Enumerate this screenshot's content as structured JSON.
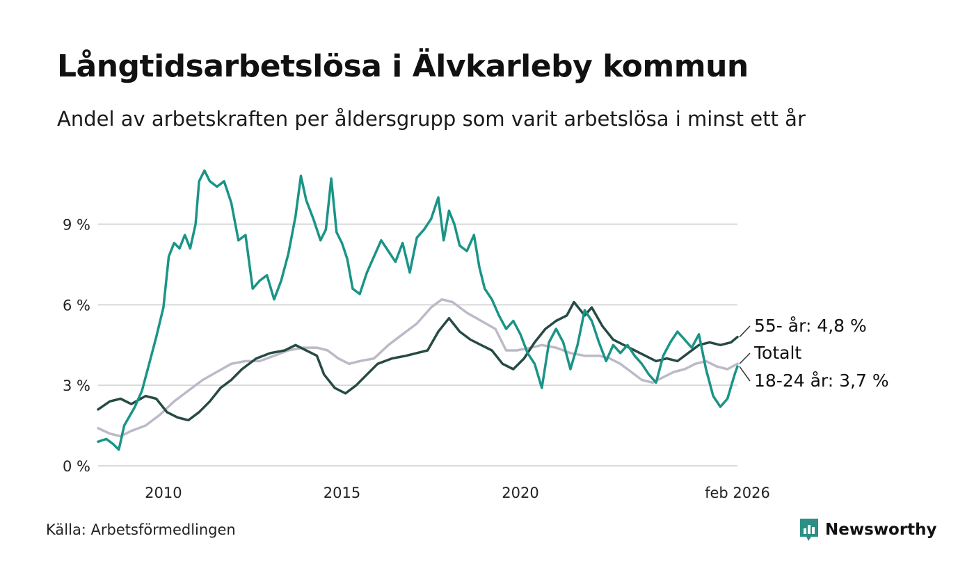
{
  "title": "Långtidsarbetslösa i Älvkarleby kommun",
  "subtitle": "Andel av arbetskraften per åldersgrupp som varit arbetslösa i minst ett år",
  "source": "Källa: Arbetsförmedlingen",
  "brand": "Newsworthy",
  "colors": {
    "young": "#1a9486",
    "old": "#264a44",
    "total": "#bcbac7",
    "grid": "#d9d9d9",
    "brand": "#2b8f84"
  },
  "chart_data": {
    "type": "line",
    "title": "Långtidsarbetslösa i Älvkarleby kommun",
    "xlabel": "",
    "ylabel": "",
    "ylim": [
      0,
      11.5
    ],
    "xlim": [
      2008.17,
      2026.08
    ],
    "yticks": [
      0,
      3,
      6,
      9
    ],
    "yticklabels": [
      "0 %",
      "3 %",
      "6 %",
      "9 %"
    ],
    "xticks": [
      2010,
      2015,
      2020,
      2026.08
    ],
    "xticklabels": [
      "2010",
      "2015",
      "2020",
      "feb 2026"
    ],
    "grid": true,
    "series": [
      {
        "key": "total",
        "name": "Totalt",
        "end_label": "Totalt",
        "points": [
          [
            2008.17,
            1.4
          ],
          [
            2008.5,
            1.2
          ],
          [
            2008.8,
            1.1
          ],
          [
            2009.1,
            1.3
          ],
          [
            2009.5,
            1.5
          ],
          [
            2009.9,
            1.9
          ],
          [
            2010.3,
            2.4
          ],
          [
            2010.7,
            2.8
          ],
          [
            2011.1,
            3.2
          ],
          [
            2011.5,
            3.5
          ],
          [
            2011.9,
            3.8
          ],
          [
            2012.3,
            3.9
          ],
          [
            2012.7,
            3.9
          ],
          [
            2013.1,
            4.1
          ],
          [
            2013.5,
            4.3
          ],
          [
            2013.9,
            4.4
          ],
          [
            2014.3,
            4.4
          ],
          [
            2014.6,
            4.3
          ],
          [
            2014.9,
            4.0
          ],
          [
            2015.2,
            3.8
          ],
          [
            2015.5,
            3.9
          ],
          [
            2015.9,
            4.0
          ],
          [
            2016.3,
            4.5
          ],
          [
            2016.7,
            4.9
          ],
          [
            2017.1,
            5.3
          ],
          [
            2017.5,
            5.9
          ],
          [
            2017.8,
            6.2
          ],
          [
            2018.1,
            6.1
          ],
          [
            2018.5,
            5.7
          ],
          [
            2018.9,
            5.4
          ],
          [
            2019.3,
            5.1
          ],
          [
            2019.6,
            4.3
          ],
          [
            2019.9,
            4.3
          ],
          [
            2020.3,
            4.4
          ],
          [
            2020.6,
            4.5
          ],
          [
            2021.0,
            4.4
          ],
          [
            2021.4,
            4.2
          ],
          [
            2021.8,
            4.1
          ],
          [
            2022.2,
            4.1
          ],
          [
            2022.5,
            4.0
          ],
          [
            2022.8,
            3.8
          ],
          [
            2023.1,
            3.5
          ],
          [
            2023.4,
            3.2
          ],
          [
            2023.7,
            3.1
          ],
          [
            2024.0,
            3.3
          ],
          [
            2024.3,
            3.5
          ],
          [
            2024.6,
            3.6
          ],
          [
            2024.9,
            3.8
          ],
          [
            2025.2,
            3.9
          ],
          [
            2025.5,
            3.7
          ],
          [
            2025.8,
            3.6
          ],
          [
            2026.08,
            3.8
          ]
        ],
        "last_value": 3.8
      },
      {
        "key": "old",
        "name": "55- år",
        "end_label": "55- år: 4,8 %",
        "points": [
          [
            2008.17,
            2.1
          ],
          [
            2008.5,
            2.4
          ],
          [
            2008.8,
            2.5
          ],
          [
            2009.1,
            2.3
          ],
          [
            2009.5,
            2.6
          ],
          [
            2009.8,
            2.5
          ],
          [
            2010.1,
            2.0
          ],
          [
            2010.4,
            1.8
          ],
          [
            2010.7,
            1.7
          ],
          [
            2011.0,
            2.0
          ],
          [
            2011.3,
            2.4
          ],
          [
            2011.6,
            2.9
          ],
          [
            2011.9,
            3.2
          ],
          [
            2012.2,
            3.6
          ],
          [
            2012.6,
            4.0
          ],
          [
            2013.0,
            4.2
          ],
          [
            2013.4,
            4.3
          ],
          [
            2013.7,
            4.5
          ],
          [
            2014.0,
            4.3
          ],
          [
            2014.3,
            4.1
          ],
          [
            2014.5,
            3.4
          ],
          [
            2014.8,
            2.9
          ],
          [
            2015.1,
            2.7
          ],
          [
            2015.4,
            3.0
          ],
          [
            2015.7,
            3.4
          ],
          [
            2016.0,
            3.8
          ],
          [
            2016.4,
            4.0
          ],
          [
            2016.8,
            4.1
          ],
          [
            2017.1,
            4.2
          ],
          [
            2017.4,
            4.3
          ],
          [
            2017.7,
            5.0
          ],
          [
            2018.0,
            5.5
          ],
          [
            2018.3,
            5.0
          ],
          [
            2018.6,
            4.7
          ],
          [
            2018.9,
            4.5
          ],
          [
            2019.2,
            4.3
          ],
          [
            2019.5,
            3.8
          ],
          [
            2019.8,
            3.6
          ],
          [
            2020.1,
            4.0
          ],
          [
            2020.4,
            4.6
          ],
          [
            2020.7,
            5.1
          ],
          [
            2021.0,
            5.4
          ],
          [
            2021.3,
            5.6
          ],
          [
            2021.5,
            6.1
          ],
          [
            2021.8,
            5.6
          ],
          [
            2022.0,
            5.9
          ],
          [
            2022.3,
            5.2
          ],
          [
            2022.6,
            4.7
          ],
          [
            2022.9,
            4.5
          ],
          [
            2023.2,
            4.3
          ],
          [
            2023.5,
            4.1
          ],
          [
            2023.8,
            3.9
          ],
          [
            2024.1,
            4.0
          ],
          [
            2024.4,
            3.9
          ],
          [
            2024.7,
            4.2
          ],
          [
            2025.0,
            4.5
          ],
          [
            2025.3,
            4.6
          ],
          [
            2025.6,
            4.5
          ],
          [
            2025.9,
            4.6
          ],
          [
            2026.08,
            4.8
          ]
        ],
        "last_value": 4.8
      },
      {
        "key": "young",
        "name": "18-24 år",
        "end_label": "18-24 år: 3,7 %",
        "points": [
          [
            2008.17,
            0.9
          ],
          [
            2008.4,
            1.0
          ],
          [
            2008.6,
            0.8
          ],
          [
            2008.75,
            0.6
          ],
          [
            2008.9,
            1.5
          ],
          [
            2009.2,
            2.2
          ],
          [
            2009.4,
            2.8
          ],
          [
            2009.6,
            3.8
          ],
          [
            2009.8,
            4.8
          ],
          [
            2010.0,
            5.9
          ],
          [
            2010.15,
            7.8
          ],
          [
            2010.3,
            8.3
          ],
          [
            2010.45,
            8.1
          ],
          [
            2010.6,
            8.6
          ],
          [
            2010.75,
            8.1
          ],
          [
            2010.9,
            9.0
          ],
          [
            2011.0,
            10.6
          ],
          [
            2011.15,
            11.0
          ],
          [
            2011.3,
            10.6
          ],
          [
            2011.5,
            10.4
          ],
          [
            2011.7,
            10.6
          ],
          [
            2011.9,
            9.8
          ],
          [
            2012.1,
            8.4
          ],
          [
            2012.3,
            8.6
          ],
          [
            2012.5,
            6.6
          ],
          [
            2012.7,
            6.9
          ],
          [
            2012.9,
            7.1
          ],
          [
            2013.1,
            6.2
          ],
          [
            2013.3,
            6.9
          ],
          [
            2013.5,
            7.9
          ],
          [
            2013.7,
            9.3
          ],
          [
            2013.85,
            10.8
          ],
          [
            2014.0,
            9.9
          ],
          [
            2014.2,
            9.2
          ],
          [
            2014.4,
            8.4
          ],
          [
            2014.55,
            8.8
          ],
          [
            2014.7,
            10.7
          ],
          [
            2014.85,
            8.7
          ],
          [
            2015.0,
            8.3
          ],
          [
            2015.15,
            7.7
          ],
          [
            2015.3,
            6.6
          ],
          [
            2015.5,
            6.4
          ],
          [
            2015.7,
            7.2
          ],
          [
            2015.9,
            7.8
          ],
          [
            2016.1,
            8.4
          ],
          [
            2016.3,
            8.0
          ],
          [
            2016.5,
            7.6
          ],
          [
            2016.7,
            8.3
          ],
          [
            2016.9,
            7.2
          ],
          [
            2017.1,
            8.5
          ],
          [
            2017.3,
            8.8
          ],
          [
            2017.5,
            9.2
          ],
          [
            2017.7,
            10.0
          ],
          [
            2017.85,
            8.4
          ],
          [
            2018.0,
            9.5
          ],
          [
            2018.15,
            9.0
          ],
          [
            2018.3,
            8.2
          ],
          [
            2018.5,
            8.0
          ],
          [
            2018.7,
            8.6
          ],
          [
            2018.85,
            7.4
          ],
          [
            2019.0,
            6.6
          ],
          [
            2019.2,
            6.2
          ],
          [
            2019.4,
            5.6
          ],
          [
            2019.6,
            5.1
          ],
          [
            2019.8,
            5.4
          ],
          [
            2020.0,
            4.9
          ],
          [
            2020.2,
            4.2
          ],
          [
            2020.4,
            3.8
          ],
          [
            2020.6,
            2.9
          ],
          [
            2020.8,
            4.6
          ],
          [
            2021.0,
            5.1
          ],
          [
            2021.2,
            4.6
          ],
          [
            2021.4,
            3.6
          ],
          [
            2021.6,
            4.5
          ],
          [
            2021.8,
            5.8
          ],
          [
            2022.0,
            5.4
          ],
          [
            2022.2,
            4.6
          ],
          [
            2022.4,
            3.9
          ],
          [
            2022.6,
            4.5
          ],
          [
            2022.8,
            4.2
          ],
          [
            2023.0,
            4.5
          ],
          [
            2023.2,
            4.1
          ],
          [
            2023.4,
            3.8
          ],
          [
            2023.6,
            3.4
          ],
          [
            2023.8,
            3.1
          ],
          [
            2024.0,
            4.1
          ],
          [
            2024.2,
            4.6
          ],
          [
            2024.4,
            5.0
          ],
          [
            2024.6,
            4.7
          ],
          [
            2024.8,
            4.4
          ],
          [
            2025.0,
            4.9
          ],
          [
            2025.2,
            3.6
          ],
          [
            2025.4,
            2.6
          ],
          [
            2025.6,
            2.2
          ],
          [
            2025.8,
            2.5
          ],
          [
            2026.0,
            3.4
          ],
          [
            2026.08,
            3.7
          ]
        ],
        "last_value": 3.7
      }
    ]
  }
}
